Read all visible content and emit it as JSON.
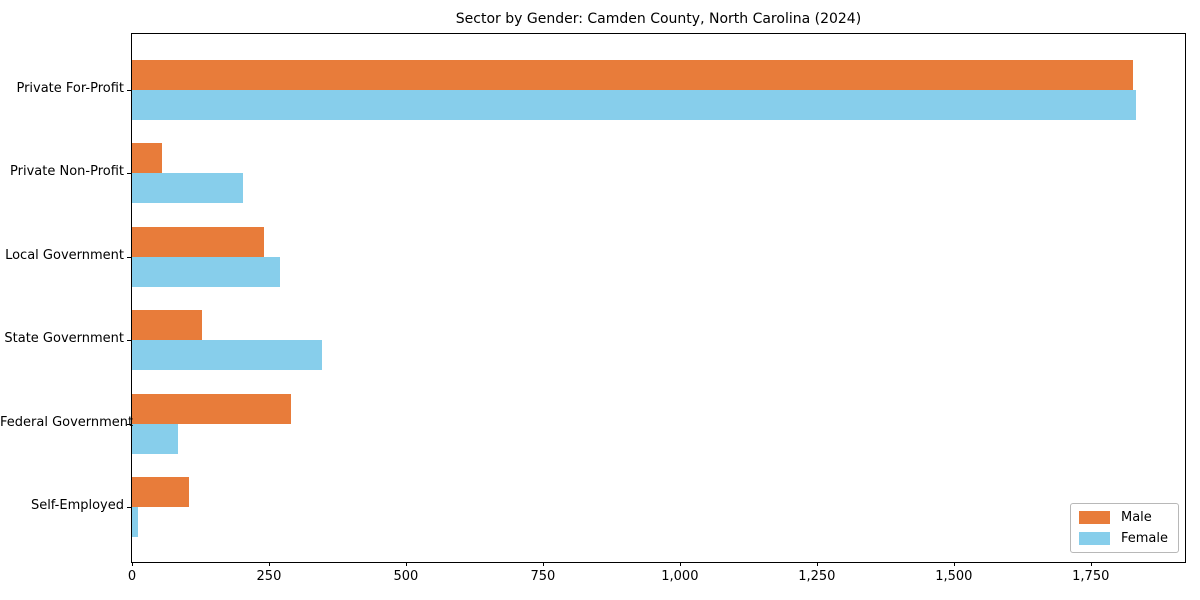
{
  "chart_data": {
    "type": "bar",
    "orientation": "horizontal",
    "title": "Sector by Gender: Camden County, North Carolina (2024)",
    "categories": [
      "Private For-Profit",
      "Private Non-Profit",
      "Local Government",
      "State Government",
      "Federal Government",
      "Self-Employed"
    ],
    "series": [
      {
        "name": "Male",
        "color": "#e87c3a",
        "values": [
          1827,
          54,
          241,
          128,
          290,
          104
        ]
      },
      {
        "name": "Female",
        "color": "#87ceeb",
        "values": [
          1832,
          203,
          270,
          346,
          84,
          11
        ]
      }
    ],
    "xlabel": "",
    "ylabel": "",
    "xlim": [
      0,
      1922
    ],
    "xticks": {
      "values": [
        0,
        250,
        500,
        750,
        1000,
        1250,
        1500,
        1750
      ],
      "labels": [
        "0",
        "250",
        "500",
        "750",
        "1,000",
        "1,250",
        "1,500",
        "1,750"
      ]
    },
    "grid": false,
    "legend_position": "lower right",
    "colors": {
      "spine": "#000000",
      "background": "#ffffff",
      "legend_border": "#b8b8b8"
    }
  }
}
